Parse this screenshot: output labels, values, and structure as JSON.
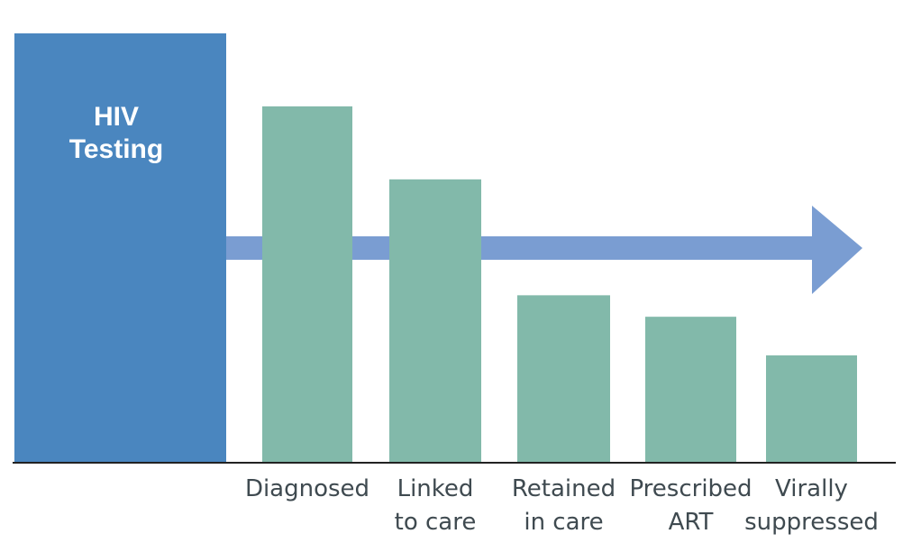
{
  "chart_data": {
    "type": "bar",
    "title": "",
    "xlabel": "",
    "ylabel": "",
    "ylim": [
      0,
      100
    ],
    "grid": false,
    "legend": "none",
    "highlight_bar": {
      "label_lines": [
        "HIV",
        "Testing"
      ],
      "value": 100,
      "color": "#4a86bf"
    },
    "categories": [
      {
        "lines": [
          "Diagnosed"
        ],
        "value": 83
      },
      {
        "lines": [
          "Linked",
          "to care"
        ],
        "value": 66
      },
      {
        "lines": [
          "Retained",
          "in care"
        ],
        "value": 39
      },
      {
        "lines": [
          "Prescribed",
          "ART"
        ],
        "value": 34
      },
      {
        "lines": [
          "Virally",
          "suppressed"
        ],
        "value": 25
      }
    ],
    "bar_color": "#82b9aa",
    "arrow": {
      "color": "#7a9dd2",
      "direction": "right"
    },
    "axis_color": "#222222"
  }
}
